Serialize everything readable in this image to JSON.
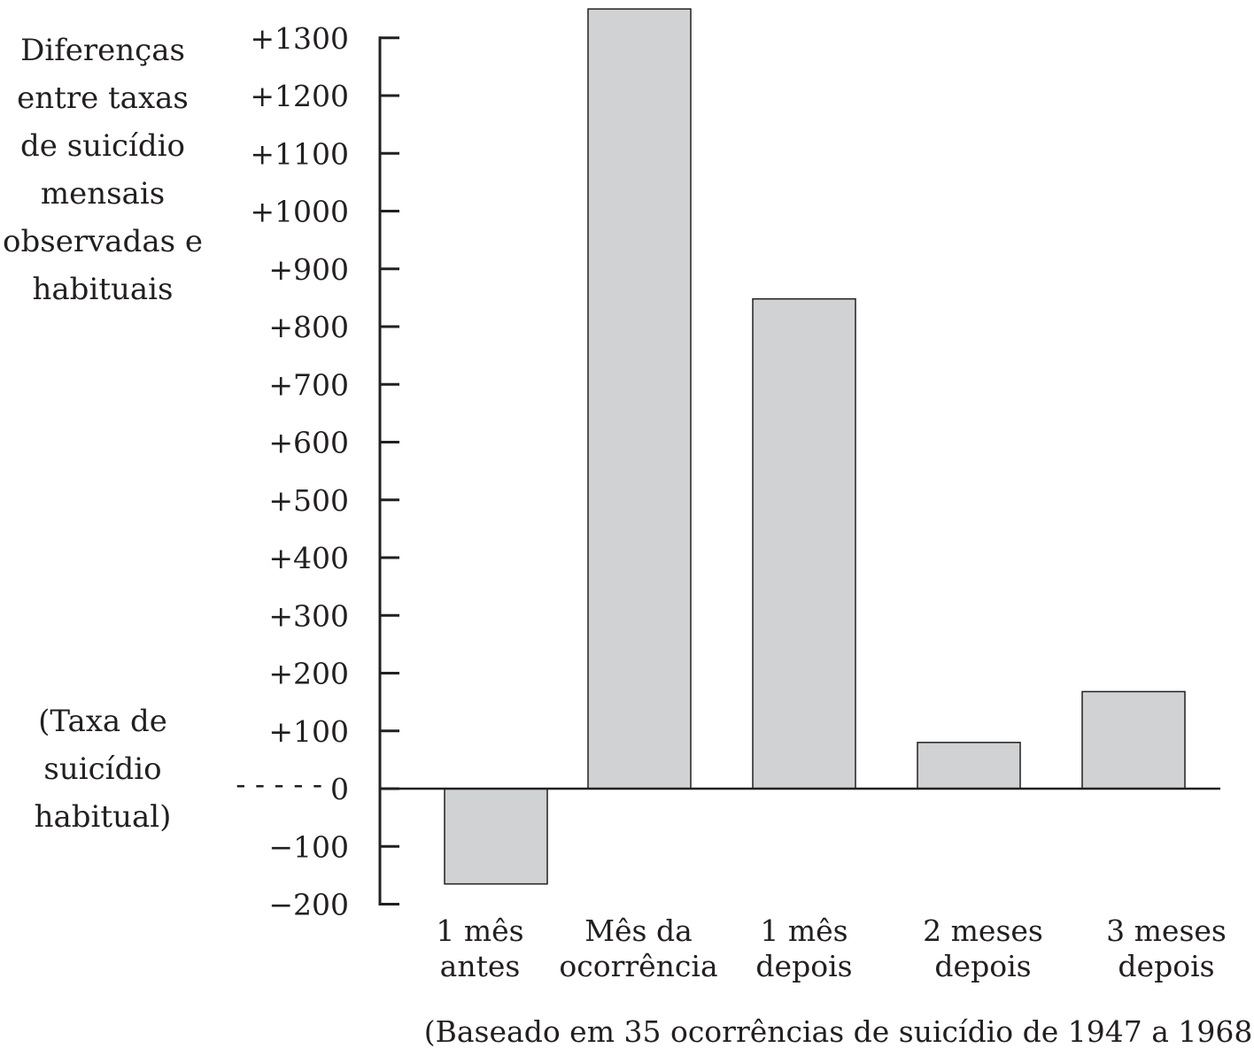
{
  "chart_data": {
    "type": "bar",
    "ylabel_lines": [
      "Diferenças",
      "entre taxas",
      "de suicídio",
      "mensais",
      "observadas e",
      "habituais"
    ],
    "baseline_note_lines": [
      "(Taxa de",
      "suicídio",
      "habitual)"
    ],
    "baseline_marker": "- - - - -",
    "caption": "(Baseado em 35 ocorrências de suicídio de 1947 a 1968)",
    "y_ticks": [
      {
        "value": 1300,
        "label": "+1300"
      },
      {
        "value": 1200,
        "label": "+1200"
      },
      {
        "value": 1100,
        "label": "+1100"
      },
      {
        "value": 1000,
        "label": "+1000"
      },
      {
        "value": 900,
        "label": "+900"
      },
      {
        "value": 800,
        "label": "+800"
      },
      {
        "value": 700,
        "label": "+700"
      },
      {
        "value": 600,
        "label": "+600"
      },
      {
        "value": 500,
        "label": "+500"
      },
      {
        "value": 400,
        "label": "+400"
      },
      {
        "value": 300,
        "label": "+300"
      },
      {
        "value": 200,
        "label": "+200"
      },
      {
        "value": 100,
        "label": "+100"
      },
      {
        "value": 0,
        "label": "0"
      },
      {
        "value": -100,
        "label": "−100"
      },
      {
        "value": -200,
        "label": "−200"
      }
    ],
    "ylim": [
      -200,
      1350
    ],
    "categories": [
      [
        "1 mês",
        "antes"
      ],
      [
        "Mês da",
        "ocorrência"
      ],
      [
        "1 mês",
        "depois"
      ],
      [
        "2 meses",
        "depois"
      ],
      [
        "3 meses",
        "depois"
      ]
    ],
    "values": [
      -165,
      1350,
      848,
      80,
      168
    ],
    "bar_color": "#d1d2d4",
    "line_color": "#231f20"
  }
}
